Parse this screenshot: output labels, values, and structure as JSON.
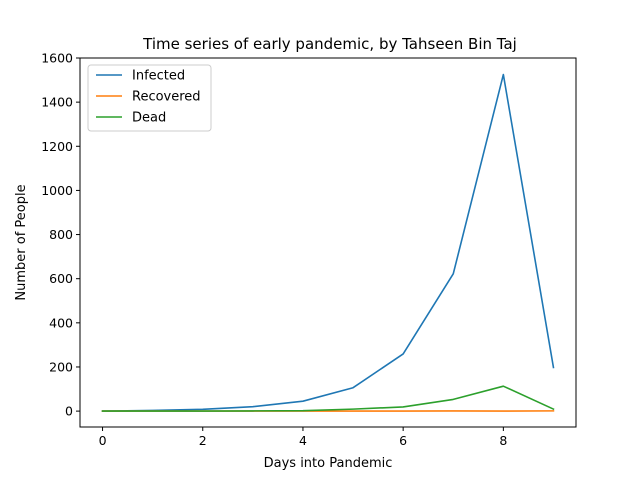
{
  "chart_data": {
    "type": "line",
    "title": "Time series of early pandemic, by Tahseen Bin Taj",
    "xlabel": "Days into Pandemic",
    "ylabel": "Number of People",
    "xlim": [
      -0.45,
      9.45
    ],
    "ylim": [
      -72,
      1600
    ],
    "xticks": [
      0,
      2,
      4,
      6,
      8
    ],
    "yticks": [
      0,
      200,
      400,
      600,
      800,
      1000,
      1200,
      1400,
      1600
    ],
    "grid": false,
    "legend": "top-left",
    "x": [
      0,
      1,
      2,
      3,
      4,
      5,
      6,
      7,
      8,
      9
    ],
    "series": [
      {
        "name": "Infected",
        "color": "#1f77b4",
        "values": [
          0,
          3,
          8,
          20,
          45,
          106,
          259,
          622,
          1525,
          198
        ]
      },
      {
        "name": "Recovered",
        "color": "#ff7f0e",
        "values": [
          0,
          0,
          0,
          0,
          0,
          0,
          0,
          1,
          0,
          1
        ]
      },
      {
        "name": "Dead",
        "color": "#2ca02c",
        "values": [
          0,
          0,
          0,
          1,
          2,
          9,
          19,
          53,
          113,
          9
        ]
      }
    ]
  }
}
